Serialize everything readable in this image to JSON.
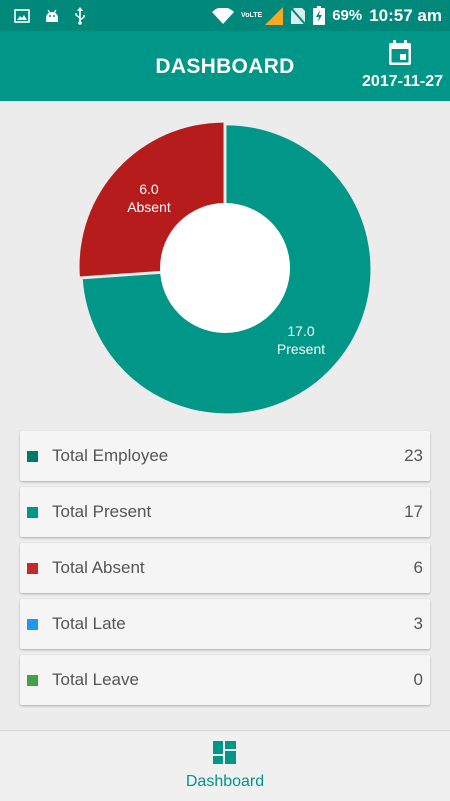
{
  "status_bar": {
    "volte": "VoLTE",
    "battery": "69%",
    "time": "10:57 am",
    "icons": [
      "image-icon",
      "android-icon",
      "usb-icon",
      "wifi-icon",
      "signal-icon",
      "no-sim-icon",
      "battery-charging-icon"
    ]
  },
  "header": {
    "title": "DASHBOARD",
    "date": "2017-11-27",
    "calendar_icon": "calendar-icon"
  },
  "chart_data": {
    "type": "pie",
    "donut": true,
    "slices": [
      {
        "label": "Present",
        "value": 17.0,
        "value_text": "17.0",
        "color": "#009688"
      },
      {
        "label": "Absent",
        "value": 6.0,
        "value_text": "6.0",
        "color": "#b71c1c"
      }
    ]
  },
  "stats": [
    {
      "label": "Total Employee",
      "value": "23",
      "color": "#00796b"
    },
    {
      "label": "Total Present",
      "value": "17",
      "color": "#009688"
    },
    {
      "label": "Total Absent",
      "value": "6",
      "color": "#c62828"
    },
    {
      "label": "Total Late",
      "value": "3",
      "color": "#2196f3"
    },
    {
      "label": "Total Leave",
      "value": "0",
      "color": "#43a047"
    }
  ],
  "bottom_nav": {
    "label": "Dashboard",
    "icon": "dashboard-icon",
    "color": "#009688"
  }
}
